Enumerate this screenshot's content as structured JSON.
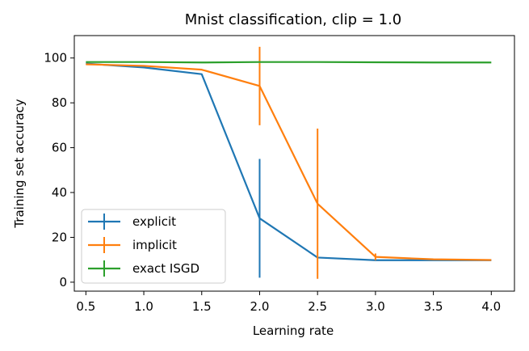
{
  "chart_data": {
    "type": "line",
    "title": "Mnist classification, clip = 1.0",
    "xlabel": "Learning rate",
    "ylabel": "Training set accuracy",
    "xlim": [
      0.4,
      4.2
    ],
    "ylim": [
      -4,
      110
    ],
    "xticks": [
      0.5,
      1.0,
      1.5,
      2.0,
      2.5,
      3.0,
      3.5,
      4.0
    ],
    "xtick_labels": [
      "0.5",
      "1.0",
      "1.5",
      "2.0",
      "2.5",
      "3.0",
      "3.5",
      "4.0"
    ],
    "yticks": [
      0,
      20,
      40,
      60,
      80,
      100
    ],
    "ytick_labels": [
      "0",
      "20",
      "40",
      "60",
      "80",
      "100"
    ],
    "grid": false,
    "legend_position": "lower-left",
    "x": [
      0.5,
      1.0,
      1.5,
      2.0,
      2.5,
      3.0,
      3.5,
      4.0
    ],
    "series": [
      {
        "name": "explicit",
        "color": "#1f77b4",
        "values": [
          97.5,
          95.8,
          92.8,
          28.5,
          11.0,
          9.8,
          9.8,
          9.8
        ],
        "errors": [
          0,
          0,
          0,
          26.5,
          0,
          0,
          0,
          0
        ]
      },
      {
        "name": "implicit",
        "color": "#ff7f0e",
        "values": [
          97.2,
          96.5,
          94.8,
          87.5,
          35.0,
          11.3,
          10.2,
          9.9
        ],
        "errors": [
          0,
          0,
          0,
          17.5,
          33.5,
          1.5,
          0,
          0
        ]
      },
      {
        "name": "exact ISGD",
        "color": "#2ca02c",
        "values": [
          98.2,
          98.2,
          98.0,
          98.2,
          98.2,
          98.1,
          98.0,
          98.0
        ],
        "errors": [
          0,
          0,
          0,
          0,
          0,
          0,
          0,
          0
        ]
      }
    ]
  }
}
